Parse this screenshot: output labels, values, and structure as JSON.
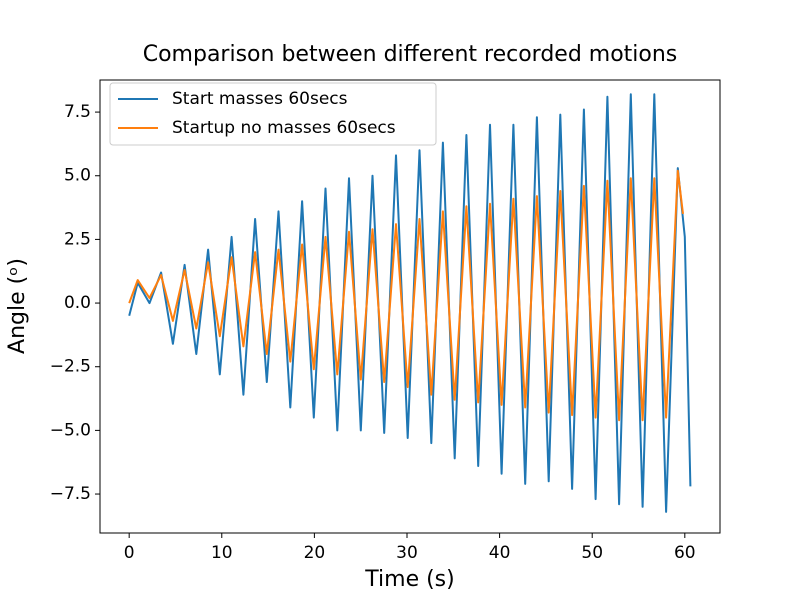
{
  "chart_data": {
    "type": "line",
    "title": "Comparison between different recorded motions",
    "x_label": "Time (s)",
    "y_label": "Angle (ᵒ)",
    "xlim": [
      -3.15,
      63.8
    ],
    "ylim": [
      -9.03,
      8.76
    ],
    "xticks": [
      0,
      10,
      20,
      30,
      40,
      50,
      60
    ],
    "yticks": [
      {
        "value": -7.5,
        "label": "−7.5"
      },
      {
        "value": -5,
        "label": "−5.0"
      },
      {
        "value": -2.5,
        "label": "−2.5"
      },
      {
        "value": 0,
        "label": "0.0"
      },
      2.5,
      {
        "value": 5,
        "label": "5.0"
      },
      7.5
    ],
    "legend": "upper left",
    "series": [
      {
        "name": "Start masses 60secs",
        "color": "#1f77b4",
        "x": [
          0,
          0.92,
          2.19,
          3.45,
          4.72,
          5.99,
          7.25,
          8.52,
          9.79,
          11.06,
          12.33,
          13.6,
          14.86,
          16.13,
          17.4,
          18.67,
          19.94,
          21.2,
          22.47,
          23.74,
          25.01,
          26.28,
          27.54,
          28.81,
          30.08,
          31.35,
          32.62,
          33.88,
          35.15,
          36.42,
          37.69,
          38.96,
          40.22,
          41.49,
          42.76,
          44.03,
          45.3,
          46.56,
          47.83,
          49.1,
          50.37,
          51.64,
          52.9,
          54.17,
          55.44,
          56.71,
          57.98,
          59.24,
          60.0,
          60.6
        ],
        "values": [
          -0.5,
          0.8,
          0.0,
          1.2,
          -1.6,
          1.5,
          -2.0,
          2.1,
          -2.8,
          2.6,
          -3.6,
          3.3,
          -3.1,
          3.6,
          -4.1,
          4.0,
          -4.5,
          4.5,
          -5.0,
          4.9,
          -5.0,
          5.0,
          -5.1,
          5.8,
          -5.3,
          6.0,
          -5.5,
          6.3,
          -6.1,
          6.6,
          -6.4,
          7.0,
          -6.7,
          7.0,
          -7.1,
          7.3,
          -7.0,
          7.4,
          -7.3,
          7.6,
          -7.7,
          8.1,
          -7.9,
          8.2,
          -8.0,
          8.2,
          -8.2,
          5.3,
          2.6,
          -7.2
        ]
      },
      {
        "name": "Startup no masses 60secs",
        "color": "#ff7f0e",
        "x": [
          0,
          0.92,
          2.19,
          3.45,
          4.72,
          5.99,
          7.25,
          8.52,
          9.79,
          11.06,
          12.33,
          13.6,
          14.86,
          16.13,
          17.4,
          18.67,
          19.94,
          21.2,
          22.47,
          23.74,
          25.01,
          26.28,
          27.54,
          28.81,
          30.08,
          31.35,
          32.62,
          33.88,
          35.15,
          36.42,
          37.69,
          38.96,
          40.22,
          41.49,
          42.76,
          44.03,
          45.3,
          46.56,
          47.83,
          49.1,
          50.37,
          51.64,
          52.9,
          54.17,
          55.44,
          56.71,
          57.98,
          59.24,
          59.8
        ],
        "values": [
          0.0,
          0.9,
          0.2,
          1.1,
          -0.7,
          1.3,
          -1.0,
          1.6,
          -1.3,
          1.8,
          -1.7,
          2.0,
          -2.0,
          2.1,
          -2.3,
          2.3,
          -2.6,
          2.6,
          -2.8,
          2.8,
          -3.0,
          2.9,
          -3.1,
          3.1,
          -3.3,
          3.3,
          -3.6,
          3.6,
          -3.8,
          3.8,
          -3.9,
          3.9,
          -4.0,
          4.1,
          -4.1,
          4.2,
          -4.3,
          4.4,
          -4.4,
          4.6,
          -4.5,
          4.8,
          -4.6,
          4.9,
          -4.6,
          4.9,
          -4.5,
          5.2,
          3.5
        ]
      }
    ]
  }
}
